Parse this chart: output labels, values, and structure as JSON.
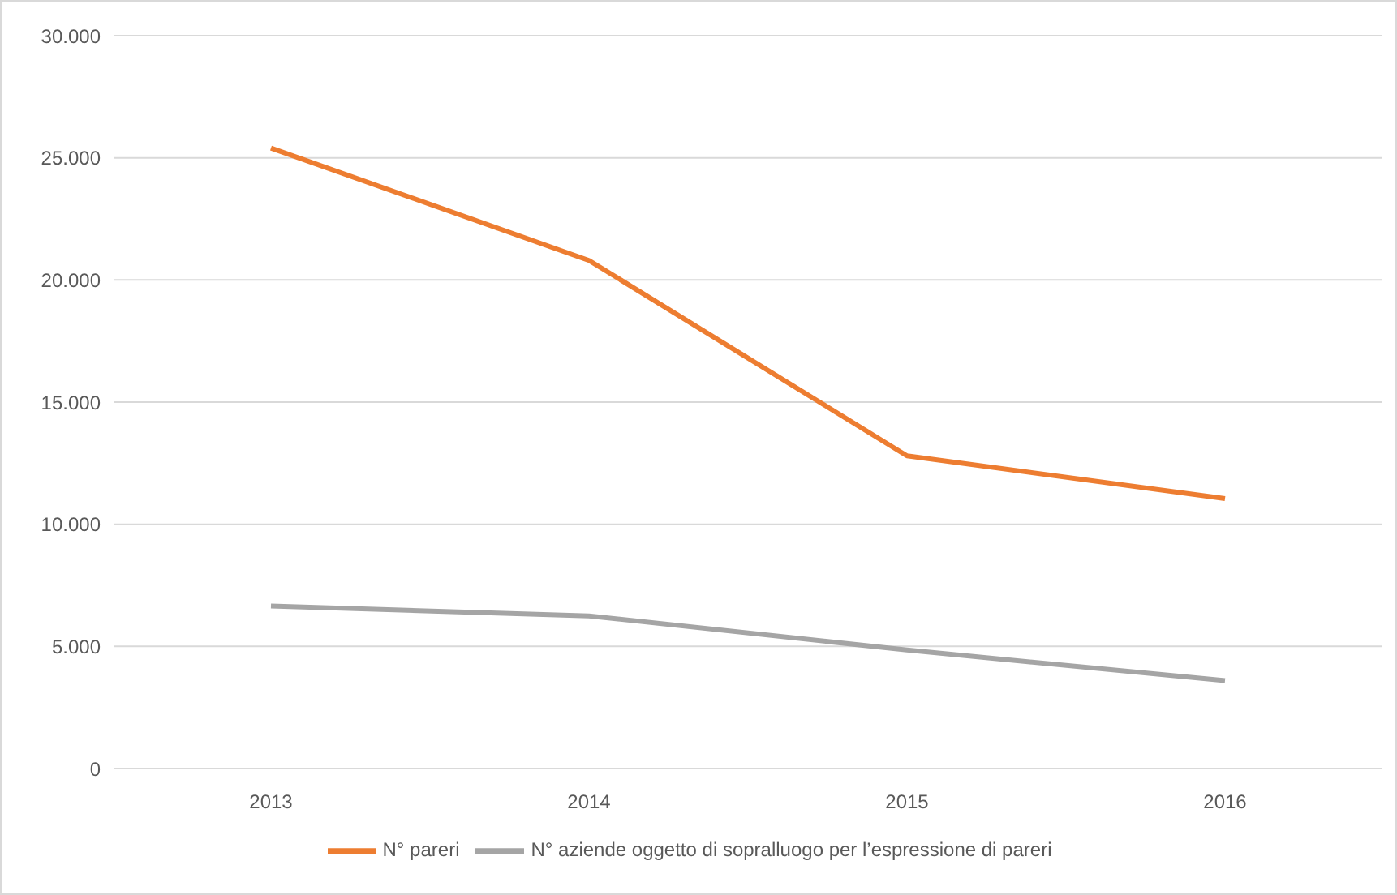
{
  "chart_data": {
    "type": "line",
    "categories": [
      "2013",
      "2014",
      "2015",
      "2016"
    ],
    "series": [
      {
        "name": "N° pareri",
        "color": "#ed7d31",
        "values": [
          25400,
          20800,
          12800,
          11050
        ]
      },
      {
        "name": "N° aziende oggetto di sopralluogo per l’espressione di pareri",
        "color": "#a5a5a5",
        "values": [
          6650,
          6250,
          4850,
          3600
        ]
      }
    ],
    "ylim": [
      0,
      30000
    ],
    "yticks": [
      {
        "value": 0,
        "label": "0"
      },
      {
        "value": 5000,
        "label": "5.000"
      },
      {
        "value": 10000,
        "label": "10.000"
      },
      {
        "value": 15000,
        "label": "15.000"
      },
      {
        "value": 20000,
        "label": "20.000"
      },
      {
        "value": 25000,
        "label": "25.000"
      },
      {
        "value": 30000,
        "label": "30.000"
      }
    ],
    "grid": "y",
    "legend": "bottom",
    "marker": "none",
    "line_style": "solid"
  }
}
